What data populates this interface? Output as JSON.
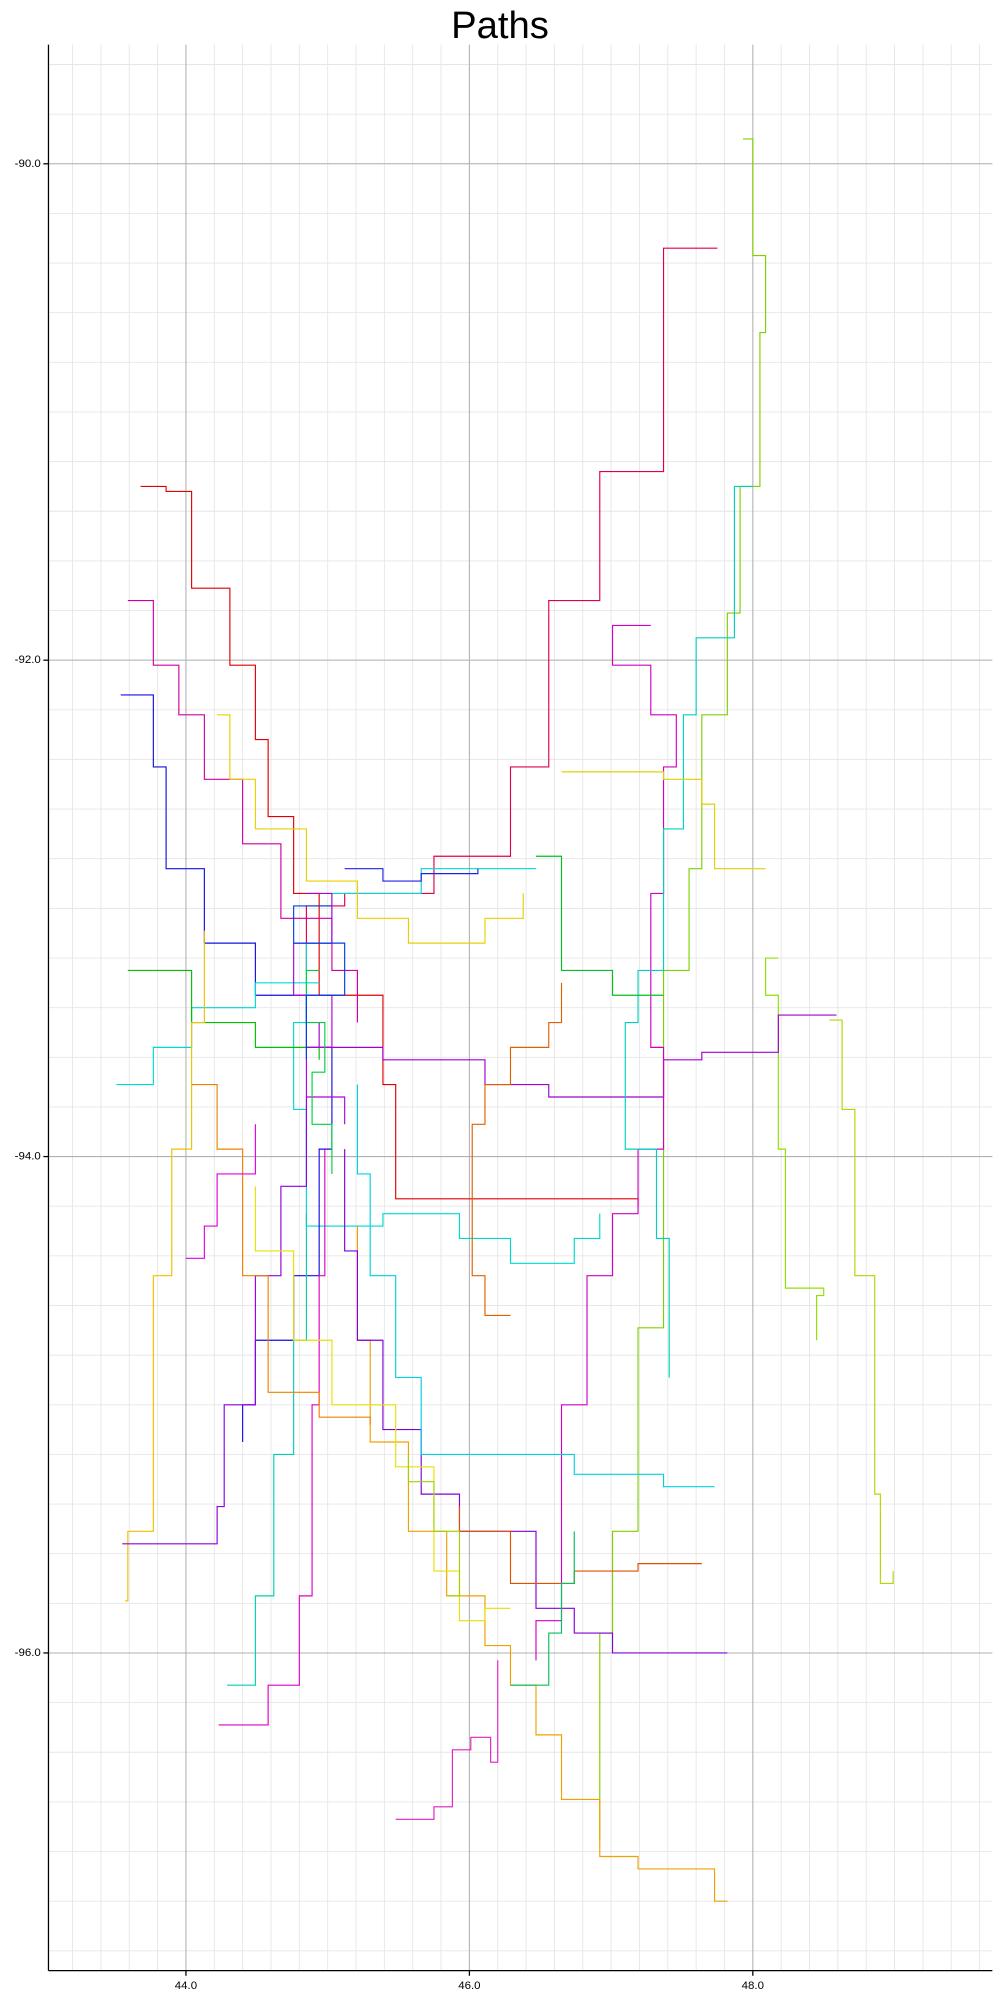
{
  "chart_data": {
    "type": "line",
    "title": "Paths",
    "drawstyle": "steps",
    "xlim": [
      43.03,
      49.69
    ],
    "ylim": [
      -97.28,
      -89.52
    ],
    "xticks": [
      {
        "value": 44,
        "label": "44.0"
      },
      {
        "value": 46,
        "label": "46.0"
      },
      {
        "value": 48,
        "label": "48.0"
      }
    ],
    "yticks": [
      {
        "value": -90,
        "label": "-90.0"
      },
      {
        "value": -92,
        "label": "-92.0"
      },
      {
        "value": -94,
        "label": "-94.0"
      },
      {
        "value": -96,
        "label": "-96.0"
      }
    ],
    "xminorticks": [
      43.2,
      43.4,
      43.6,
      43.8,
      44.0,
      44.2,
      44.4,
      44.6,
      44.8,
      45.0,
      45.2,
      45.4,
      45.6,
      45.8,
      46.0,
      46.2,
      46.4,
      46.6,
      46.8,
      47.0,
      47.2,
      47.4,
      47.6,
      47.8,
      48.0,
      48.2,
      48.4,
      48.6,
      48.8,
      49.0,
      49.2,
      49.4,
      49.6
    ],
    "yminorticks": [
      -97.2,
      -97.0,
      -96.8,
      -96.6,
      -96.4,
      -96.2,
      -96.0,
      -95.8,
      -95.6,
      -95.4,
      -95.2,
      -95.0,
      -94.8,
      -94.6,
      -94.4,
      -94.2,
      -94.0,
      -93.8,
      -93.6,
      -93.4,
      -93.2,
      -93.0,
      -92.8,
      -92.6,
      -92.4,
      -92.2,
      -92.0,
      -91.8,
      -91.6,
      -91.4,
      -91.2,
      -91.0,
      -90.8,
      -90.6,
      -90.4,
      -90.2,
      -90.0,
      -89.8,
      -89.6
    ],
    "grid": true,
    "series": [
      {
        "color": "#e0004a",
        "x": [
          47.75,
          47.37,
          46.92,
          46.56,
          46.29,
          45.75,
          45.12,
          44.85
        ],
        "y": [
          -90.34,
          -91.24,
          -91.76,
          -92.43,
          -92.79,
          -92.94,
          -92.99,
          -93.25
        ]
      },
      {
        "color": "#e00000",
        "x": [
          43.68,
          43.86,
          44.04,
          44.31,
          44.49,
          44.58,
          44.76,
          44.94,
          45.39,
          45.48,
          46.47,
          47.19
        ],
        "y": [
          -91.3,
          -91.32,
          -91.71,
          -92.02,
          -92.32,
          -92.63,
          -92.94,
          -93.35,
          -93.71,
          -94.17,
          -94.17,
          -94.2
        ]
      },
      {
        "color": "#7fd000",
        "x": [
          47.93,
          48.0,
          48.09,
          48.05,
          47.91,
          47.82,
          47.64,
          47.55,
          47.37,
          47.37,
          47.19,
          47.01,
          46.92
        ],
        "y": [
          -89.9,
          -90.37,
          -90.68,
          -91.3,
          -91.81,
          -92.22,
          -92.84,
          -93.25,
          -93.97,
          -94.69,
          -95.51,
          -95.92,
          -96.75
        ]
      },
      {
        "color": "#b0d800",
        "x": [
          48.54,
          48.63,
          48.72,
          48.86,
          48.9,
          48.99
        ],
        "y": [
          -93.45,
          -93.81,
          -94.48,
          -95.36,
          -95.72,
          -95.67
        ]
      },
      {
        "color": "#90e000",
        "x": [
          48.18,
          48.09,
          48.18,
          48.23,
          48.5,
          48.45
        ],
        "y": [
          -93.2,
          -93.35,
          -93.97,
          -94.53,
          -94.56,
          -94.74
        ]
      },
      {
        "color": "#a000d0",
        "x": [
          48.59,
          48.18,
          47.64,
          47.37,
          46.56,
          46.11,
          45.39,
          44.94
        ],
        "y": [
          -93.43,
          -93.58,
          -93.61,
          -93.76,
          -93.71,
          -93.61,
          -93.56,
          -93.46
        ]
      },
      {
        "color": "#d000c0",
        "x": [
          47.28,
          47.01,
          47.28,
          47.46,
          47.37,
          47.28,
          47.37,
          47.19,
          47.01,
          46.83,
          46.65,
          46.47
        ],
        "y": [
          -91.86,
          -92.02,
          -92.22,
          -92.43,
          -92.94,
          -93.56,
          -93.97,
          -94.23,
          -94.48,
          -95.0,
          -95.87,
          -96.03
        ]
      },
      {
        "color": "#00d0c0",
        "x": [
          48.0,
          47.87,
          47.6,
          47.51,
          47.37,
          47.19,
          47.1,
          47.32,
          47.41
        ],
        "y": [
          -91.3,
          -91.91,
          -92.22,
          -92.68,
          -93.25,
          -93.46,
          -93.97,
          -94.33,
          -94.89
        ]
      },
      {
        "color": "#e0d000",
        "x": [
          46.65,
          47.37,
          47.64,
          47.73,
          48.09
        ],
        "y": [
          -92.45,
          -92.48,
          -92.58,
          -92.84,
          -92.84
        ]
      },
      {
        "color": "#00c020",
        "x": [
          46.47,
          46.65,
          47.01,
          47.37
        ],
        "y": [
          -92.79,
          -93.25,
          -93.35,
          -93.35
        ]
      },
      {
        "color": "#00d8d0",
        "x": [
          46.47,
          45.66,
          45.03,
          44.85,
          44.76,
          44.85,
          45.39,
          45.93,
          46.29,
          46.74,
          46.92
        ],
        "y": [
          -92.84,
          -92.94,
          -93.14,
          -93.46,
          -93.81,
          -94.28,
          -94.23,
          -94.33,
          -94.43,
          -94.33,
          -94.23
        ]
      },
      {
        "color": "#1010e0",
        "x": [
          43.54,
          43.77,
          43.86,
          44.13,
          44.49,
          44.85,
          45.03,
          44.94,
          44.76,
          44.49,
          44.4
        ],
        "y": [
          -92.14,
          -92.43,
          -92.84,
          -93.14,
          -93.35,
          -93.56,
          -93.97,
          -94.48,
          -94.74,
          -95.0,
          -95.15
        ]
      },
      {
        "color": "#00d8d8",
        "x": [
          43.51,
          43.77,
          44.04,
          44.49,
          44.94
        ],
        "y": [
          -93.71,
          -93.56,
          -93.4,
          -93.3,
          -93.3
        ]
      },
      {
        "color": "#00c000",
        "x": [
          43.59,
          44.04,
          44.04,
          44.49,
          44.94
        ],
        "y": [
          -93.25,
          -93.25,
          -93.46,
          -93.56,
          -93.61
        ]
      },
      {
        "color": "#f0c000",
        "x": [
          43.57,
          43.59,
          43.77,
          43.77,
          43.9,
          44.04,
          44.13
        ],
        "y": [
          -95.79,
          -95.51,
          -95.0,
          -94.48,
          -93.97,
          -93.46,
          -93.09
        ]
      },
      {
        "color": "#9000e0",
        "x": [
          43.55,
          44.22,
          44.27,
          44.49,
          44.67,
          44.85
        ],
        "y": [
          -95.56,
          -95.41,
          -95.0,
          -94.48,
          -94.12,
          -93.76
        ]
      },
      {
        "color": "#e000c0",
        "x": [
          44.23,
          44.58,
          44.8,
          44.89,
          44.94,
          44.98
        ],
        "y": [
          -96.29,
          -96.13,
          -95.77,
          -95.0,
          -94.48,
          -93.97
        ]
      },
      {
        "color": "#00d0b0",
        "x": [
          44.29,
          44.49,
          44.62,
          44.76,
          44.85
        ],
        "y": [
          -96.13,
          -95.77,
          -95.2,
          -94.74,
          -94.23
        ]
      },
      {
        "color": "#e020c0",
        "x": [
          45.48,
          45.75,
          45.88,
          46.01,
          46.15,
          46.2
        ],
        "y": [
          -96.67,
          -96.62,
          -96.39,
          -96.34,
          -96.44,
          -96.03
        ]
      },
      {
        "color": "#f0a000",
        "x": [
          47.82,
          47.73,
          47.19,
          46.92,
          46.65,
          46.47,
          46.29,
          46.11,
          45.84,
          45.57,
          45.3,
          45.21
        ],
        "y": [
          -97.0,
          -96.87,
          -96.82,
          -96.59,
          -96.33,
          -96.13,
          -95.97,
          -95.77,
          -95.51,
          -95.15,
          -94.74,
          -94.28
        ]
      },
      {
        "color": "#8000d8",
        "x": [
          47.82,
          47.01,
          46.74,
          46.47,
          45.93,
          45.66,
          45.39,
          45.21,
          45.12
        ],
        "y": [
          -96.0,
          -95.92,
          -95.82,
          -95.51,
          -95.36,
          -95.1,
          -94.74,
          -94.38,
          -93.97
        ]
      },
      {
        "color": "#00d0e0",
        "x": [
          47.73,
          47.37,
          46.74,
          45.93,
          45.66,
          45.48,
          45.3,
          45.21
        ],
        "y": [
          -95.33,
          -95.28,
          -95.2,
          -95.2,
          -94.89,
          -94.48,
          -94.07,
          -93.71
        ]
      },
      {
        "color": "#e05000",
        "x": [
          47.64,
          47.19,
          46.74,
          46.29,
          45.93
        ],
        "y": [
          -95.64,
          -95.67,
          -95.72,
          -95.51,
          -95.41
        ]
      },
      {
        "color": "#e8e000",
        "x": [
          46.29,
          46.11,
          45.93,
          45.75,
          45.48,
          45.03,
          44.76,
          44.49
        ],
        "y": [
          -95.82,
          -95.87,
          -95.67,
          -95.25,
          -95.0,
          -94.74,
          -94.38,
          -94.12
        ]
      },
      {
        "color": "#e06000",
        "x": [
          46.29,
          46.11,
          46.02,
          46.02,
          46.11,
          46.29,
          46.56,
          46.65
        ],
        "y": [
          -94.64,
          -94.48,
          -94.28,
          -93.87,
          -93.71,
          -93.56,
          -93.46,
          -93.3
        ]
      },
      {
        "color": "#2020e8",
        "x": [
          45.12,
          45.39,
          45.66,
          46.06
        ],
        "y": [
          -92.84,
          -92.89,
          -92.86,
          -92.84
        ]
      },
      {
        "color": "#d000a0",
        "x": [
          43.59,
          43.77,
          43.95,
          44.13,
          44.4,
          44.67,
          45.03,
          45.21
        ],
        "y": [
          -91.76,
          -92.02,
          -92.22,
          -92.48,
          -92.74,
          -93.04,
          -93.25,
          -93.46
        ]
      },
      {
        "color": "#e8d000",
        "x": [
          44.22,
          44.31,
          44.49,
          44.85,
          45.21,
          45.57,
          46.11,
          46.38
        ],
        "y": [
          -92.22,
          -92.48,
          -92.68,
          -92.89,
          -93.04,
          -93.14,
          -93.04,
          -92.94
        ]
      },
      {
        "color": "#b000e0",
        "x": [
          44.85,
          45.03,
          44.76,
          45.03,
          44.85,
          45.12
        ],
        "y": [
          -92.94,
          -93.14,
          -93.35,
          -93.56,
          -93.76,
          -93.87
        ]
      },
      {
        "color": "#00d040",
        "x": [
          44.94,
          44.85,
          44.98,
          44.89,
          45.03
        ],
        "y": [
          -93.25,
          -93.46,
          -93.66,
          -93.87,
          -94.07
        ]
      },
      {
        "color": "#0040e0",
        "x": [
          45.03,
          44.76,
          45.12,
          44.85
        ],
        "y": [
          -92.99,
          -93.14,
          -93.35,
          -93.61
        ]
      },
      {
        "color": "#f08000",
        "x": [
          44.04,
          44.22,
          44.4,
          44.58,
          44.94,
          45.3
        ],
        "y": [
          -93.71,
          -93.97,
          -94.48,
          -94.95,
          -95.05,
          -95.08
        ]
      },
      {
        "color": "#00c060",
        "x": [
          46.29,
          46.56,
          46.65,
          46.74
        ],
        "y": [
          -96.13,
          -95.92,
          -95.72,
          -95.51
        ]
      },
      {
        "color": "#e000e0",
        "x": [
          44.0,
          44.13,
          44.22,
          44.49
        ],
        "y": [
          -94.41,
          -94.28,
          -94.07,
          -93.87
        ]
      },
      {
        "color": "#a0d000",
        "x": [
          45.84,
          45.93,
          45.75,
          45.57
        ],
        "y": [
          -95.77,
          -95.51,
          -95.31,
          -95.2
        ]
      }
    ]
  }
}
